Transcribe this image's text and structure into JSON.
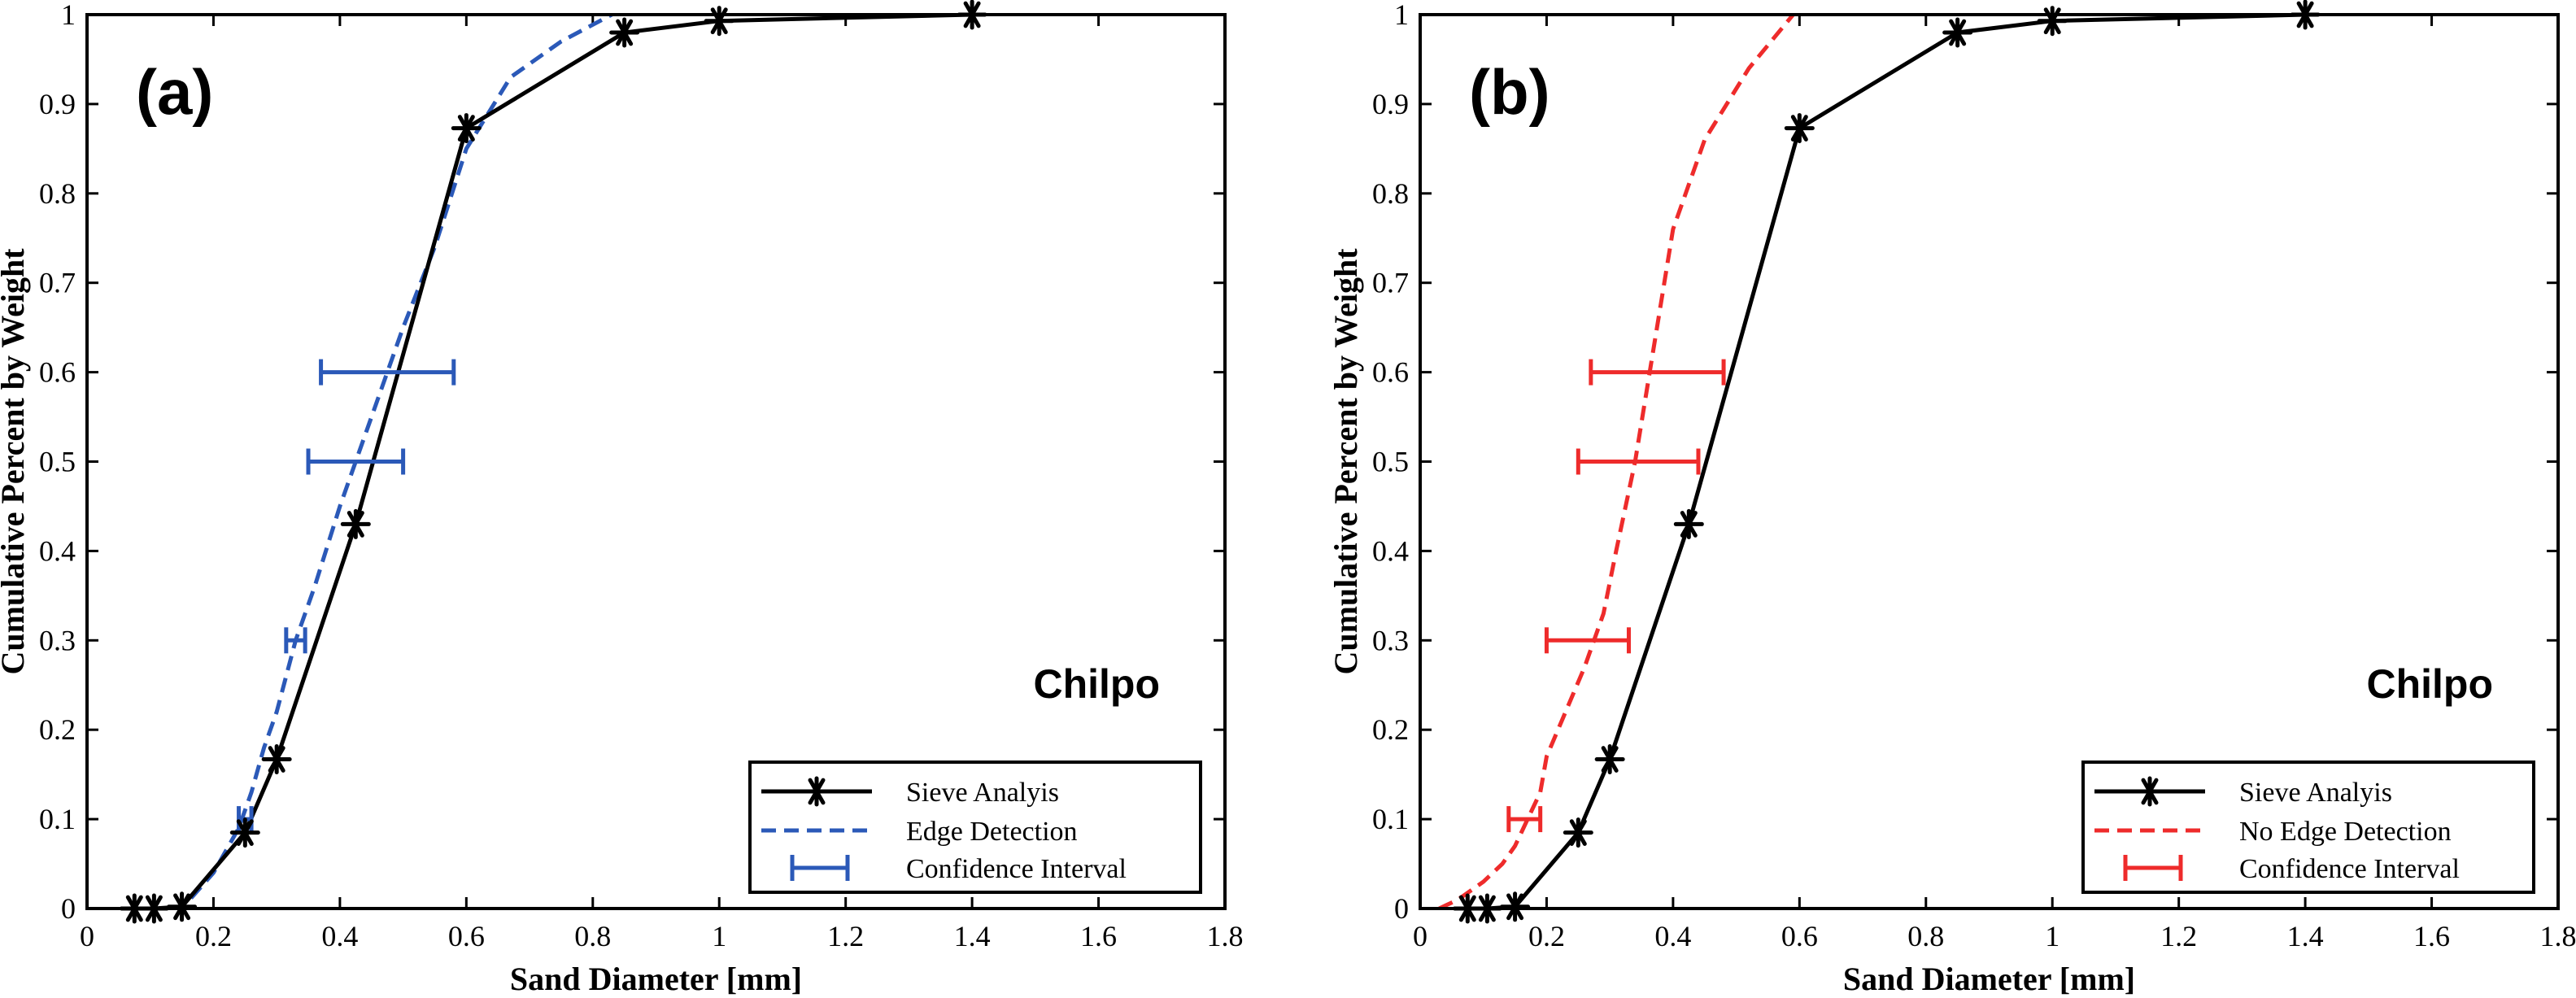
{
  "chart_data": [
    {
      "type": "line",
      "panel_label": "(a)",
      "annotation": "Chilpo",
      "xlabel": "Sand Diameter [mm]",
      "ylabel": "Cumulative Percent by Weight",
      "xlim": [
        0,
        1.8
      ],
      "ylim": [
        0,
        1
      ],
      "x_ticks": [
        "0",
        "0.2",
        "0.4",
        "0.6",
        "0.8",
        "1",
        "1.2",
        "1.4",
        "1.6",
        "1.8"
      ],
      "y_ticks": [
        "0",
        "0.1",
        "0.2",
        "0.3",
        "0.4",
        "0.5",
        "0.6",
        "0.7",
        "0.8",
        "0.9",
        "1"
      ],
      "legend_position": "bottom-right",
      "series": [
        {
          "name": "Sieve Analyis",
          "style": "solid-star",
          "color": "#000000",
          "x": [
            0.075,
            0.106,
            0.15,
            0.25,
            0.3,
            0.425,
            0.6,
            0.85,
            1.0,
            1.4
          ],
          "y": [
            0.0,
            0.0,
            0.002,
            0.085,
            0.167,
            0.43,
            0.873,
            0.98,
            0.993,
            1.0
          ]
        },
        {
          "name": "Edge Detection",
          "style": "dashed",
          "color": "#2b59b8",
          "x": [
            0.1,
            0.15,
            0.2,
            0.24,
            0.26,
            0.28,
            0.3,
            0.33,
            0.36,
            0.4,
            0.45,
            0.5,
            0.55,
            0.6,
            0.67,
            0.75,
            0.83
          ],
          "y": [
            0.0,
            0.0,
            0.04,
            0.09,
            0.13,
            0.18,
            0.22,
            0.3,
            0.36,
            0.45,
            0.55,
            0.65,
            0.74,
            0.85,
            0.93,
            0.97,
            1.0
          ]
        }
      ],
      "confidence_interval": {
        "name": "Confidence Interval",
        "color": "#2b59b8",
        "intervals": [
          {
            "y": 0.1,
            "low": 0.24,
            "high": 0.26
          },
          {
            "y": 0.3,
            "low": 0.315,
            "high": 0.345
          },
          {
            "y": 0.5,
            "low": 0.35,
            "high": 0.5
          },
          {
            "y": 0.6,
            "low": 0.37,
            "high": 0.58
          }
        ]
      }
    },
    {
      "type": "line",
      "panel_label": "(b)",
      "annotation": "Chilpo",
      "xlabel": "Sand Diameter [mm]",
      "ylabel": "Cumulative Percent by Weight",
      "xlim": [
        0,
        1.8
      ],
      "ylim": [
        0,
        1
      ],
      "x_ticks": [
        "0",
        "0.2",
        "0.4",
        "0.6",
        "0.8",
        "1",
        "1.2",
        "1.4",
        "1.6",
        "1.8"
      ],
      "y_ticks": [
        "0",
        "0.1",
        "0.2",
        "0.3",
        "0.4",
        "0.5",
        "0.6",
        "0.7",
        "0.8",
        "0.9",
        "1"
      ],
      "legend_position": "bottom-right",
      "series": [
        {
          "name": "Sieve Analyis",
          "style": "solid-star",
          "color": "#000000",
          "x": [
            0.075,
            0.106,
            0.15,
            0.25,
            0.3,
            0.425,
            0.6,
            0.85,
            1.0,
            1.4
          ],
          "y": [
            0.0,
            0.0,
            0.002,
            0.085,
            0.167,
            0.43,
            0.873,
            0.98,
            0.993,
            1.0
          ]
        },
        {
          "name": "No Edge Detection",
          "style": "dashed",
          "color": "#ee2b2b",
          "x": [
            0.03,
            0.06,
            0.1,
            0.13,
            0.15,
            0.17,
            0.19,
            0.2,
            0.23,
            0.26,
            0.29,
            0.31,
            0.34,
            0.37,
            0.4,
            0.45,
            0.52,
            0.59
          ],
          "y": [
            0.0,
            0.01,
            0.03,
            0.05,
            0.07,
            0.1,
            0.13,
            0.17,
            0.22,
            0.27,
            0.33,
            0.4,
            0.5,
            0.63,
            0.76,
            0.86,
            0.94,
            1.0
          ]
        }
      ],
      "confidence_interval": {
        "name": "Confidence Interval",
        "color": "#ee2b2b",
        "intervals": [
          {
            "y": 0.1,
            "low": 0.14,
            "high": 0.19
          },
          {
            "y": 0.3,
            "low": 0.2,
            "high": 0.33
          },
          {
            "y": 0.5,
            "low": 0.25,
            "high": 0.44
          },
          {
            "y": 0.6,
            "low": 0.27,
            "high": 0.48
          }
        ]
      }
    }
  ]
}
